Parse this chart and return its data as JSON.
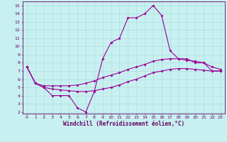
{
  "xlabel": "Windchill (Refroidissement éolien,°C)",
  "bg_color": "#c8f0f0",
  "grid_color": "#b0dede",
  "line_color": "#990099",
  "xlim": [
    -0.5,
    23.5
  ],
  "ylim": [
    1.8,
    15.5
  ],
  "xticks": [
    0,
    1,
    2,
    3,
    4,
    5,
    6,
    7,
    8,
    9,
    10,
    11,
    12,
    13,
    14,
    15,
    16,
    17,
    18,
    19,
    20,
    21,
    22,
    23
  ],
  "yticks": [
    2,
    3,
    4,
    5,
    6,
    7,
    8,
    9,
    10,
    11,
    12,
    13,
    14,
    15
  ],
  "line1_x": [
    0,
    1,
    2,
    3,
    4,
    5,
    6,
    7,
    8,
    9,
    10,
    11,
    12,
    13,
    14,
    15,
    16,
    17,
    18,
    19,
    20,
    21,
    22,
    23
  ],
  "line1_y": [
    7.5,
    5.5,
    5.0,
    4.0,
    4.0,
    4.0,
    2.5,
    2.0,
    4.5,
    8.5,
    10.5,
    11.0,
    13.5,
    13.5,
    14.0,
    15.0,
    13.8,
    9.5,
    8.5,
    8.5,
    8.0,
    8.0,
    7.0,
    7.0
  ],
  "line2_x": [
    0,
    1,
    2,
    3,
    4,
    5,
    6,
    7,
    8,
    9,
    10,
    11,
    12,
    13,
    14,
    15,
    16,
    17,
    18,
    19,
    20,
    21,
    22,
    23
  ],
  "line2_y": [
    7.5,
    5.5,
    5.2,
    5.2,
    5.2,
    5.2,
    5.3,
    5.5,
    5.8,
    6.2,
    6.5,
    6.8,
    7.2,
    7.5,
    7.8,
    8.2,
    8.4,
    8.5,
    8.5,
    8.3,
    8.2,
    8.0,
    7.5,
    7.2
  ],
  "line3_x": [
    0,
    1,
    2,
    3,
    4,
    5,
    6,
    7,
    8,
    9,
    10,
    11,
    12,
    13,
    14,
    15,
    16,
    17,
    18,
    19,
    20,
    21,
    22,
    23
  ],
  "line3_y": [
    7.5,
    5.5,
    5.0,
    4.8,
    4.7,
    4.6,
    4.5,
    4.5,
    4.6,
    4.8,
    5.0,
    5.3,
    5.7,
    6.0,
    6.4,
    6.8,
    7.0,
    7.2,
    7.3,
    7.3,
    7.2,
    7.1,
    7.0,
    7.0
  ],
  "tick_fontsize": 4.5,
  "xlabel_fontsize": 5.5
}
